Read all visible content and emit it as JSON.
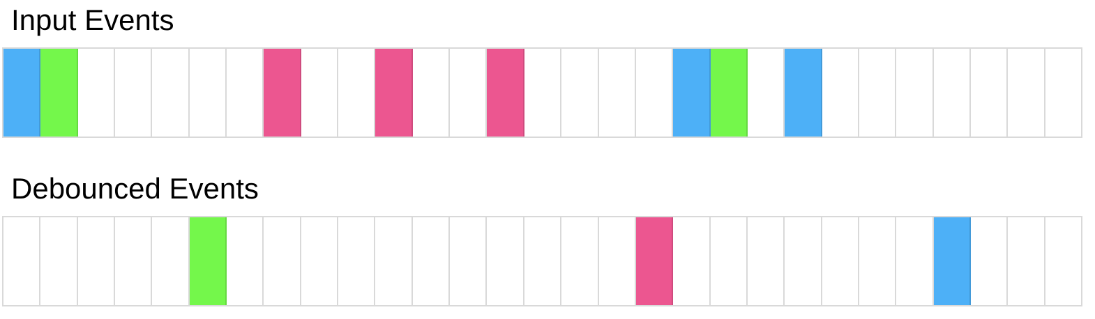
{
  "colors": {
    "blue": "#4db0f7",
    "green": "#74f74b",
    "pink": "#ec5690",
    "empty": "#ffffff",
    "grid": "#d9d9d9"
  },
  "input_events": {
    "title": "Input Events",
    "slot_count": 29,
    "events": [
      {
        "slot": 0,
        "color": "blue"
      },
      {
        "slot": 1,
        "color": "green"
      },
      {
        "slot": 7,
        "color": "pink"
      },
      {
        "slot": 10,
        "color": "pink"
      },
      {
        "slot": 13,
        "color": "pink"
      },
      {
        "slot": 18,
        "color": "blue"
      },
      {
        "slot": 19,
        "color": "green"
      },
      {
        "slot": 21,
        "color": "blue"
      }
    ]
  },
  "debounced_events": {
    "title": "Debounced Events",
    "slot_count": 29,
    "events": [
      {
        "slot": 5,
        "color": "green"
      },
      {
        "slot": 17,
        "color": "pink"
      },
      {
        "slot": 25,
        "color": "blue"
      }
    ]
  }
}
